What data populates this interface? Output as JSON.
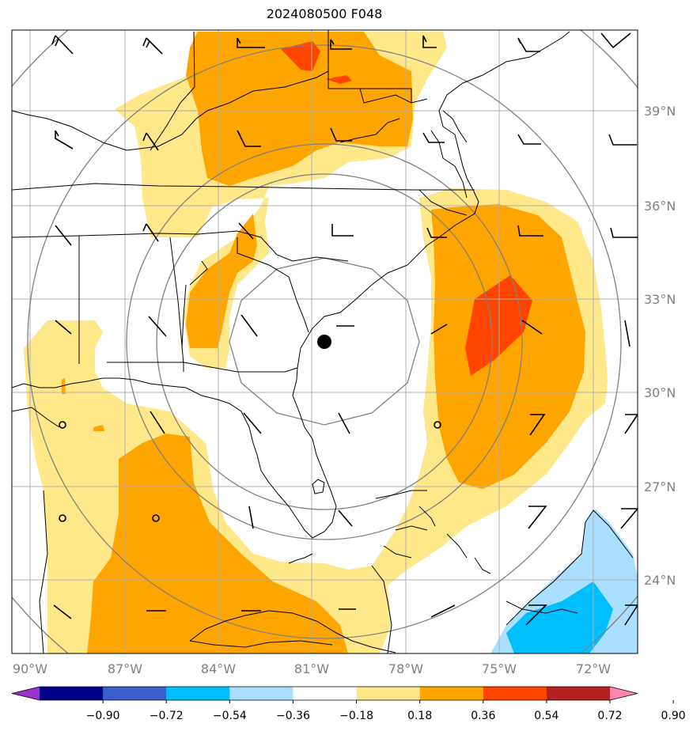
{
  "title": "2024080500 F048",
  "lon_labels": [
    "90°W",
    "87°W",
    "84°W",
    "81°W",
    "78°W",
    "75°W",
    "72°W"
  ],
  "lat_labels": [
    "39°N",
    "36°N",
    "33°N",
    "30°N",
    "27°N",
    "24°N"
  ],
  "colorbar": {
    "labels": [
      "−0.90",
      "−0.72",
      "−0.54",
      "−0.36",
      "−0.18",
      "0.18",
      "0.36",
      "0.54",
      "0.72",
      "0.90"
    ],
    "colors": [
      "#9932cc",
      "#00008b",
      "#3b5fcd",
      "#00bfff",
      "#aadfff",
      "#ffffff",
      "#ffe88a",
      "#ffa500",
      "#ff4500",
      "#b22222",
      "#ff88aa"
    ]
  },
  "fill_colors": {
    "yellow": "#ffe88a",
    "orange": "#ffa500",
    "red": "#ff4500",
    "lightblue": "#aadfff",
    "blue": "#00bfff"
  },
  "center_marker": "storm-center"
}
